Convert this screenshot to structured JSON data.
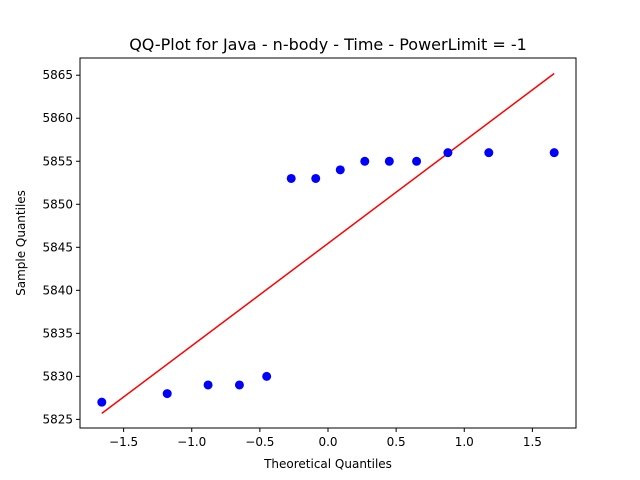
{
  "chart_data": {
    "type": "scatter",
    "title": "QQ-Plot for Java - n-body - Time - PowerLimit = -1",
    "xlabel": "Theoretical Quantiles",
    "ylabel": "Sample Quantiles",
    "xlim": [
      -1.82,
      1.82
    ],
    "ylim": [
      5824.0,
      5867.0
    ],
    "x_ticks": [
      -1.5,
      -1.0,
      -0.5,
      0.0,
      0.5,
      1.0,
      1.5
    ],
    "x_tick_labels": [
      "−1.5",
      "−1.0",
      "−0.5",
      "0.0",
      "0.5",
      "1.0",
      "1.5"
    ],
    "y_ticks": [
      5825,
      5830,
      5835,
      5840,
      5845,
      5850,
      5855,
      5860,
      5865
    ],
    "y_tick_labels": [
      "5825",
      "5830",
      "5835",
      "5840",
      "5845",
      "5850",
      "5855",
      "5860",
      "5865"
    ],
    "grid": false,
    "points": {
      "color": "#0000ff",
      "x": [
        -1.66,
        -1.18,
        -0.88,
        -0.65,
        -0.45,
        -0.27,
        -0.09,
        0.09,
        0.27,
        0.45,
        0.65,
        0.88,
        1.18,
        1.66
      ],
      "y": [
        5827,
        5828,
        5829,
        5829,
        5830,
        5853,
        5853,
        5854,
        5855,
        5855,
        5855,
        5856,
        5856,
        5856
      ]
    },
    "reference_line": {
      "color": "#ff0000",
      "x": [
        -1.66,
        1.66
      ],
      "y": [
        5825.7,
        5865.2
      ]
    }
  }
}
